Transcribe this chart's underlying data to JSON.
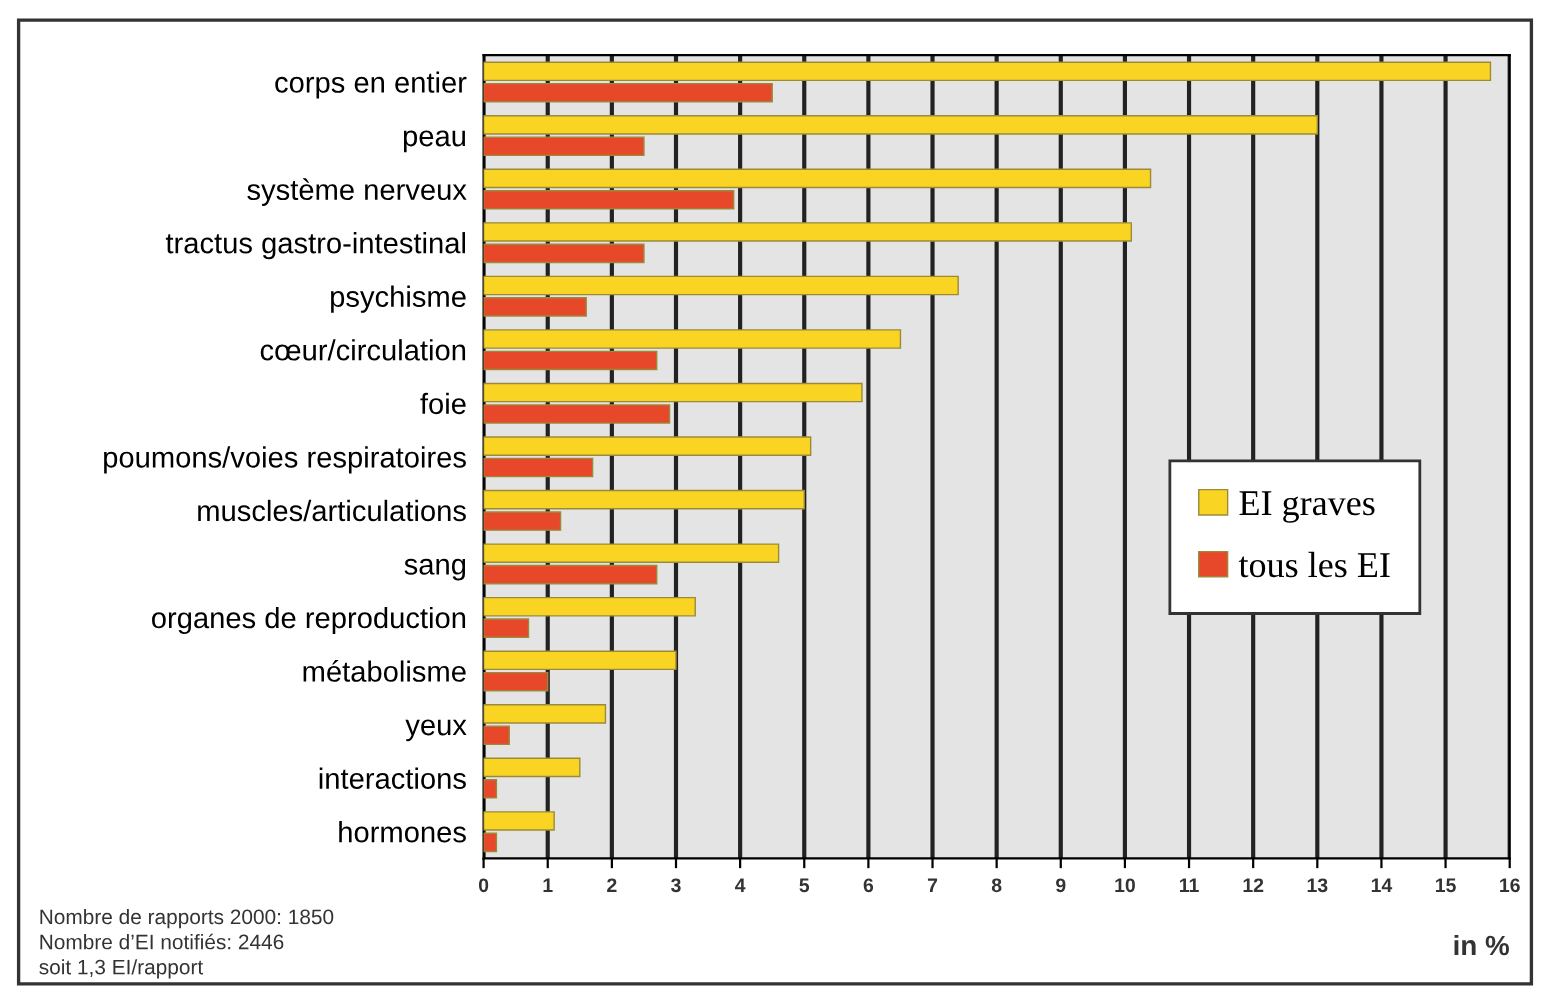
{
  "chart_data": {
    "type": "bar",
    "orientation": "horizontal",
    "xlabel": "in %",
    "categories": [
      "corps en entier",
      "peau",
      "système nerveux",
      "tractus gastro-intestinal",
      "psychisme",
      "cœur/circulation",
      "foie",
      "poumons/voies respiratoires",
      "muscles/articulations",
      "sang",
      "organes de reproduction",
      "métabolisme",
      "yeux",
      "interactions",
      "hormones"
    ],
    "series": [
      {
        "name": "EI graves",
        "color": "#f9d423",
        "values": [
          15.7,
          13.0,
          10.4,
          10.1,
          7.4,
          6.5,
          5.9,
          5.1,
          5.0,
          4.6,
          3.3,
          3.0,
          1.9,
          1.5,
          1.1
        ]
      },
      {
        "name": "tous les EI",
        "color": "#e8482a",
        "values": [
          4.5,
          2.5,
          3.9,
          2.5,
          1.6,
          2.7,
          2.9,
          1.7,
          1.2,
          2.7,
          0.7,
          1.0,
          0.4,
          0.2,
          0.2
        ]
      }
    ],
    "xlim": [
      0,
      16
    ],
    "xticks": [
      0,
      1,
      2,
      3,
      4,
      5,
      6,
      7,
      8,
      9,
      10,
      11,
      12,
      13,
      14,
      15,
      16
    ],
    "grid": "x",
    "legend": "center right",
    "annotations": [
      "Nombre de rapports 2000: 1850",
      "Nombre d’EI notifiés: 2446",
      "soit 1,3 EI/rapport"
    ]
  }
}
